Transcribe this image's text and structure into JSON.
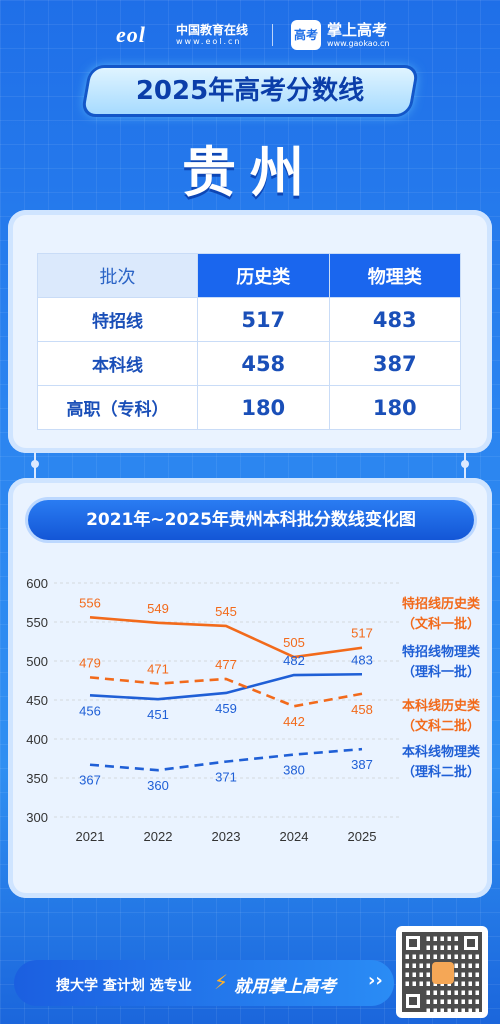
{
  "header": {
    "eol_mark": "eol",
    "eol_name": "中国教育在线",
    "eol_url": "www.eol.cn",
    "gk_badge": "高考",
    "gk_name": "掌上高考",
    "gk_url": "www.gaokao.cn"
  },
  "title": "2025年高考分数线",
  "province": "贵州",
  "table": {
    "headers": [
      "批次",
      "历史类",
      "物理类"
    ],
    "rows": [
      {
        "batch": "特招线",
        "history": "517",
        "physics": "483"
      },
      {
        "batch": "本科线",
        "history": "458",
        "physics": "387"
      },
      {
        "batch": "高职（专科）",
        "history": "180",
        "physics": "180"
      }
    ]
  },
  "chart_data": {
    "type": "line",
    "title": "2021年~2025年贵州本科批分数线变化图",
    "x": [
      "2021",
      "2022",
      "2023",
      "2024",
      "2025"
    ],
    "ylim": [
      300,
      600
    ],
    "yticks": [
      "300",
      "350",
      "400",
      "450",
      "500",
      "550",
      "600"
    ],
    "grid": true,
    "legend_position": "right",
    "series": [
      {
        "name_line1": "特招线历史类",
        "name_line2": "（文科一批）",
        "color": "#f26a1b",
        "dashed": false,
        "values": [
          556,
          549,
          545,
          505,
          517
        ],
        "label_pos": [
          "above",
          "above",
          "above",
          "above",
          "above"
        ]
      },
      {
        "name_line1": "特招线物理类",
        "name_line2": "（理科一批）",
        "color": "#1f5fd6",
        "dashed": false,
        "values": [
          456,
          451,
          459,
          482,
          483
        ],
        "label_pos": [
          "below",
          "below",
          "below",
          "above",
          "above"
        ]
      },
      {
        "name_line1": "本科线历史类",
        "name_line2": "（文科二批）",
        "color": "#f26a1b",
        "dashed": true,
        "values": [
          479,
          471,
          477,
          442,
          458
        ],
        "label_pos": [
          "above",
          "above",
          "above",
          "below",
          "below"
        ]
      },
      {
        "name_line1": "本科线物理类",
        "name_line2": "（理科二批）",
        "color": "#1f5fd6",
        "dashed": true,
        "values": [
          367,
          360,
          371,
          380,
          387
        ],
        "label_pos": [
          "below",
          "below",
          "below",
          "below",
          "below"
        ]
      }
    ]
  },
  "footer": {
    "links": "搜大学  查计划  选专业",
    "cta": "就用掌上高考",
    "arrows": "››"
  }
}
